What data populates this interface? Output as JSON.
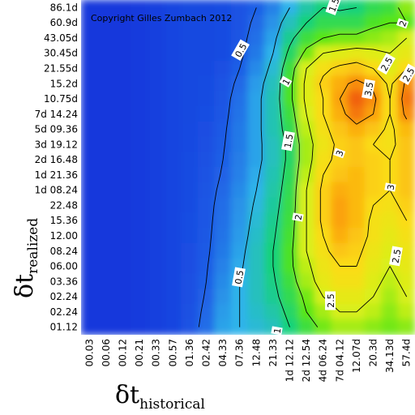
{
  "chart_data": {
    "type": "heatmap",
    "copyright": "Copyright Gilles Zumbach 2012",
    "xlabel": {
      "symbol": "δt",
      "subscript": "historical"
    },
    "ylabel": {
      "symbol": "δt",
      "subscript": "realized"
    },
    "x_ticks": [
      "00.03",
      "00.06",
      "00.12",
      "00.21",
      "00.33",
      "00.57",
      "01.36",
      "02.42",
      "04.33",
      "07.36",
      "12.48",
      "21.33",
      "1d 12.12",
      "2d 12.54",
      "4d 06.24",
      "7d 04.12",
      "12.07d",
      "20.3d",
      "34.13d",
      "57.4d"
    ],
    "y_ticks": [
      "86.1d",
      "60.9d",
      "43.05d",
      "30.45d",
      "21.55d",
      "15.2d",
      "10.75d",
      "7d 14.24",
      "5d 09.36",
      "3d 19.12",
      "2d 16.48",
      "1d 21.36",
      "1d 08.24",
      "22.48",
      "15.36",
      "12.00",
      "08.24",
      "06.00",
      "03.36",
      "02.24",
      "02.24",
      "01.12"
    ],
    "color_scale": [
      "#0a1fd6",
      "#1f5fe6",
      "#2fb4ea",
      "#18d27a",
      "#58e614",
      "#d8f01a",
      "#fbdc16",
      "#fba20e",
      "#ea3604"
    ],
    "contour_levels": [
      0.5,
      1,
      1.5,
      2,
      2.5,
      3,
      3.5
    ],
    "contour_labels": [
      "1.5",
      "2",
      "0.5",
      "2.5",
      "2.5",
      "1",
      "3.5",
      "1.5",
      "3",
      "3",
      "3",
      "2",
      "2.5",
      "0.5",
      "2.5",
      "1"
    ],
    "grid": [
      [
        0.2,
        0.2,
        0.2,
        0.22,
        0.25,
        0.3,
        0.32,
        0.32,
        0.35,
        0.4,
        0.5,
        0.7,
        1.0,
        1.3,
        1.5,
        1.45,
        1.5,
        1.7,
        1.8,
        2.2
      ],
      [
        0.2,
        0.2,
        0.2,
        0.22,
        0.25,
        0.3,
        0.32,
        0.32,
        0.35,
        0.4,
        0.55,
        0.8,
        1.2,
        1.5,
        1.7,
        1.7,
        1.7,
        1.9,
        2.0,
        2.0
      ],
      [
        0.2,
        0.2,
        0.2,
        0.22,
        0.25,
        0.3,
        0.32,
        0.32,
        0.35,
        0.42,
        0.6,
        0.9,
        1.4,
        1.8,
        2.0,
        2.1,
        2.1,
        2.2,
        2.3,
        2.5
      ],
      [
        0.2,
        0.2,
        0.2,
        0.22,
        0.25,
        0.3,
        0.32,
        0.32,
        0.35,
        0.45,
        0.65,
        1.0,
        1.6,
        2.1,
        2.5,
        2.6,
        2.7,
        2.6,
        2.5,
        2.7
      ],
      [
        0.2,
        0.2,
        0.2,
        0.22,
        0.25,
        0.3,
        0.32,
        0.33,
        0.38,
        0.5,
        0.75,
        1.1,
        1.8,
        2.5,
        2.9,
        3.1,
        3.2,
        3.0,
        2.6,
        3.0
      ],
      [
        0.2,
        0.2,
        0.2,
        0.22,
        0.25,
        0.3,
        0.32,
        0.34,
        0.4,
        0.55,
        0.85,
        1.2,
        1.9,
        2.6,
        3.1,
        3.4,
        3.6,
        3.4,
        2.9,
        3.6
      ],
      [
        0.2,
        0.2,
        0.2,
        0.22,
        0.25,
        0.3,
        0.32,
        0.35,
        0.42,
        0.6,
        0.9,
        1.25,
        1.9,
        2.6,
        3.0,
        3.5,
        3.8,
        3.6,
        3.0,
        3.7
      ],
      [
        0.2,
        0.2,
        0.2,
        0.22,
        0.25,
        0.3,
        0.32,
        0.36,
        0.44,
        0.62,
        0.9,
        1.25,
        1.8,
        2.5,
        3.0,
        3.4,
        3.7,
        3.5,
        3.0,
        3.6
      ],
      [
        0.2,
        0.2,
        0.2,
        0.22,
        0.25,
        0.3,
        0.33,
        0.37,
        0.46,
        0.65,
        0.9,
        1.25,
        1.7,
        2.4,
        2.9,
        3.2,
        3.4,
        3.2,
        2.9,
        3.3
      ],
      [
        0.2,
        0.2,
        0.2,
        0.22,
        0.25,
        0.3,
        0.33,
        0.38,
        0.48,
        0.66,
        0.9,
        1.2,
        1.6,
        2.3,
        2.8,
        3.1,
        3.2,
        3.0,
        2.9,
        3.2
      ],
      [
        0.2,
        0.2,
        0.2,
        0.22,
        0.25,
        0.3,
        0.34,
        0.39,
        0.5,
        0.68,
        0.9,
        1.2,
        1.6,
        2.3,
        2.9,
        3.1,
        3.2,
        3.1,
        3.0,
        3.2
      ],
      [
        0.2,
        0.2,
        0.2,
        0.22,
        0.25,
        0.3,
        0.34,
        0.4,
        0.52,
        0.7,
        0.95,
        1.25,
        1.65,
        2.4,
        3.0,
        3.2,
        3.3,
        3.1,
        3.0,
        3.2
      ],
      [
        0.2,
        0.2,
        0.2,
        0.22,
        0.25,
        0.3,
        0.35,
        0.42,
        0.55,
        0.75,
        1.0,
        1.3,
        1.7,
        2.5,
        3.1,
        3.4,
        3.3,
        3.1,
        3.0,
        3.2
      ],
      [
        0.2,
        0.2,
        0.2,
        0.22,
        0.25,
        0.3,
        0.35,
        0.43,
        0.58,
        0.8,
        1.05,
        1.35,
        1.75,
        2.5,
        3.1,
        3.5,
        3.3,
        3.0,
        2.9,
        3.1
      ],
      [
        0.2,
        0.2,
        0.2,
        0.22,
        0.25,
        0.3,
        0.36,
        0.44,
        0.6,
        0.82,
        1.1,
        1.4,
        1.8,
        2.5,
        3.1,
        3.5,
        3.3,
        2.9,
        2.8,
        3.0
      ],
      [
        0.2,
        0.2,
        0.2,
        0.22,
        0.25,
        0.3,
        0.36,
        0.45,
        0.62,
        0.85,
        1.15,
        1.45,
        1.85,
        2.5,
        3.0,
        3.4,
        3.2,
        2.9,
        2.7,
        2.9
      ],
      [
        0.2,
        0.2,
        0.2,
        0.22,
        0.25,
        0.3,
        0.37,
        0.46,
        0.65,
        0.9,
        1.2,
        1.5,
        1.9,
        2.5,
        2.9,
        3.2,
        3.1,
        2.8,
        2.6,
        2.8
      ],
      [
        0.2,
        0.2,
        0.2,
        0.22,
        0.25,
        0.3,
        0.37,
        0.48,
        0.7,
        0.95,
        1.2,
        1.5,
        1.9,
        2.4,
        2.8,
        3.0,
        3.0,
        2.7,
        2.5,
        2.7
      ],
      [
        0.2,
        0.2,
        0.2,
        0.22,
        0.25,
        0.3,
        0.38,
        0.5,
        0.75,
        1.0,
        1.2,
        1.45,
        1.8,
        2.3,
        2.7,
        2.9,
        2.9,
        2.6,
        2.4,
        2.6
      ],
      [
        0.2,
        0.2,
        0.2,
        0.22,
        0.25,
        0.3,
        0.38,
        0.52,
        0.8,
        1.0,
        1.2,
        1.4,
        1.7,
        2.1,
        2.5,
        2.7,
        2.7,
        2.5,
        2.3,
        2.5
      ],
      [
        0.2,
        0.2,
        0.2,
        0.22,
        0.25,
        0.3,
        0.39,
        0.55,
        0.85,
        1.0,
        1.15,
        1.3,
        1.6,
        2.0,
        2.3,
        2.5,
        2.5,
        2.4,
        2.2,
        2.4
      ],
      [
        0.2,
        0.2,
        0.2,
        0.22,
        0.25,
        0.3,
        0.4,
        0.58,
        0.9,
        1.0,
        1.1,
        1.2,
        1.5,
        1.8,
        2.1,
        2.3,
        2.3,
        2.2,
        2.1,
        2.2
      ]
    ]
  }
}
